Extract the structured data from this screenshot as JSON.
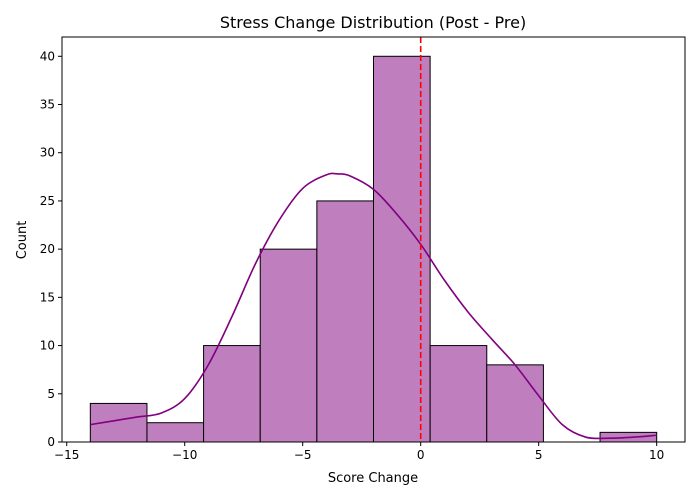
{
  "chart_data": {
    "type": "bar",
    "title": "Stress Change Distribution (Post - Pre)",
    "xlabel": "Score Change",
    "ylabel": "Count",
    "xlim": [
      -15.2,
      11.2
    ],
    "ylim": [
      0,
      42
    ],
    "xticks": [
      -15,
      -10,
      -5,
      0,
      5,
      10
    ],
    "xtick_labels": [
      "−15",
      "−10",
      "−5",
      "0",
      "5",
      "10"
    ],
    "yticks": [
      0,
      5,
      10,
      15,
      20,
      25,
      30,
      35,
      40
    ],
    "ytick_labels": [
      "0",
      "5",
      "10",
      "15",
      "20",
      "25",
      "30",
      "35",
      "40"
    ],
    "bins": [
      {
        "start": -14.0,
        "end": -11.6,
        "count": 4
      },
      {
        "start": -11.6,
        "end": -9.2,
        "count": 2
      },
      {
        "start": -9.2,
        "end": -6.8,
        "count": 10
      },
      {
        "start": -6.8,
        "end": -4.4,
        "count": 20
      },
      {
        "start": -4.4,
        "end": -2.0,
        "count": 25
      },
      {
        "start": -2.0,
        "end": 0.4,
        "count": 40
      },
      {
        "start": 0.4,
        "end": 2.8,
        "count": 10
      },
      {
        "start": 2.8,
        "end": 5.2,
        "count": 8
      },
      {
        "start": 5.2,
        "end": 7.6,
        "count": 0
      },
      {
        "start": 7.6,
        "end": 10.0,
        "count": 1
      }
    ],
    "kde": {
      "x": [
        -14,
        -13,
        -12,
        -11,
        -10,
        -9,
        -8,
        -7,
        -6,
        -5,
        -4,
        -3.5,
        -3,
        -2,
        -1,
        0,
        1,
        2,
        3,
        4,
        5,
        6,
        7,
        8,
        9,
        10
      ],
      "y": [
        1.8,
        2.2,
        2.6,
        3.0,
        4.5,
        8.0,
        13.0,
        18.5,
        23.0,
        26.3,
        27.7,
        27.8,
        27.6,
        26.2,
        23.6,
        20.5,
        16.8,
        13.5,
        10.7,
        8.0,
        4.8,
        1.8,
        0.5,
        0.4,
        0.5,
        0.7
      ]
    },
    "vline": {
      "x": 0
    },
    "grid": false,
    "colors": {
      "bar_fill": "#bf7fbf",
      "bar_edge": "#000000",
      "kde_line": "#800080",
      "vline": "#ff0000"
    }
  }
}
